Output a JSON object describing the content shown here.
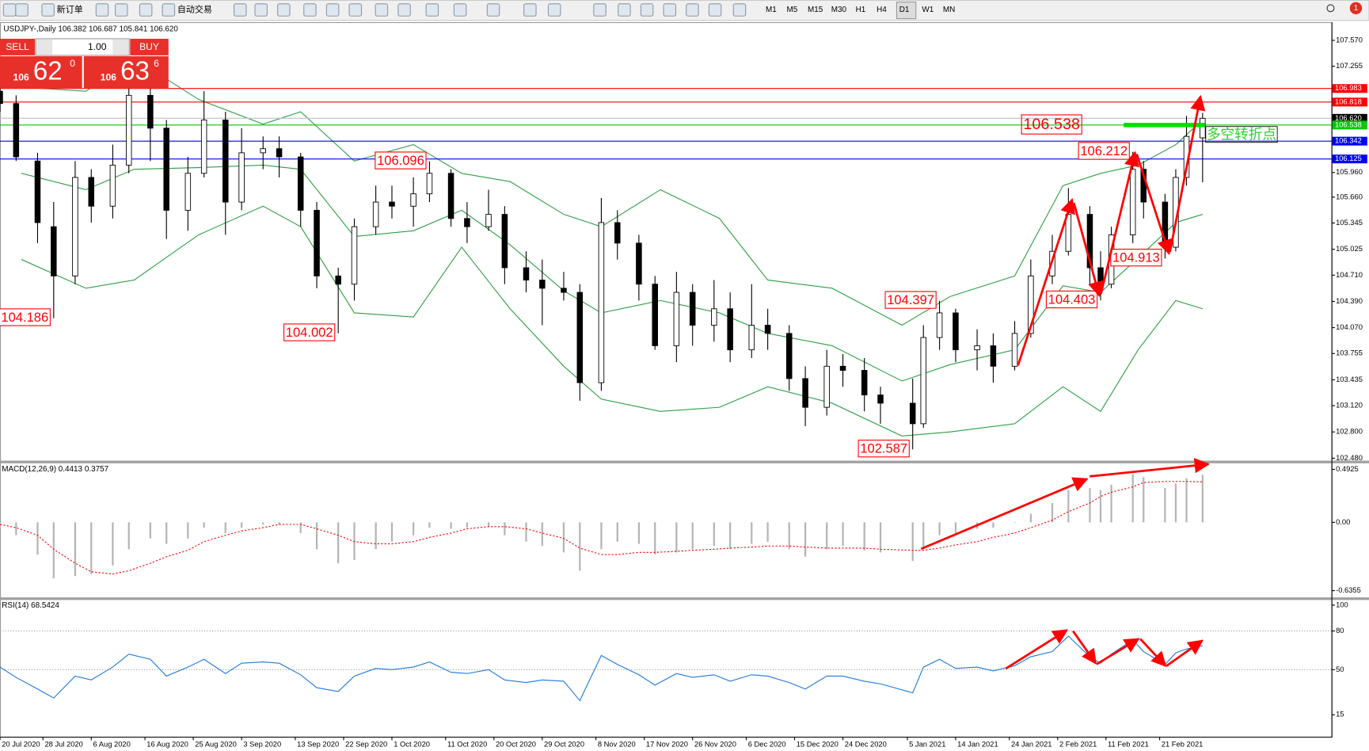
{
  "toolbar": {
    "new_order": "新订单",
    "auto_trading": "自动交易",
    "timeframes": [
      "M1",
      "M5",
      "M15",
      "M30",
      "H1",
      "H4",
      "D1",
      "W1",
      "MN"
    ],
    "notifications": "1"
  },
  "trade_panel": {
    "sell": "SELL",
    "buy": "BUY",
    "lots": "1.00",
    "bid": {
      "big": "106",
      "main": "62",
      "pip": "0"
    },
    "ask": {
      "big": "106",
      "main": "63",
      "pip": "6"
    }
  },
  "chart_data": [
    {
      "type": "candlestick",
      "title": "USDJPY-,Daily  106.382 106.687 105.841 106.620",
      "note": "多空转折点",
      "x": [
        "2020-07-20",
        "2020-07-23",
        "2020-07-27",
        "2020-07-30",
        "2020-08-03",
        "2020-08-06",
        "2020-08-10",
        "2020-08-13",
        "2020-08-17",
        "2020-08-20",
        "2020-08-24",
        "2020-08-27",
        "2020-08-31",
        "2020-09-03",
        "2020-09-07",
        "2020-09-10",
        "2020-09-14",
        "2020-09-17",
        "2020-09-21",
        "2020-09-24",
        "2020-09-28",
        "2020-10-01",
        "2020-10-05",
        "2020-10-08",
        "2020-10-12",
        "2020-10-15",
        "2020-10-19",
        "2020-10-22",
        "2020-10-26",
        "2020-10-29",
        "2020-11-02",
        "2020-11-05",
        "2020-11-09",
        "2020-11-12",
        "2020-11-16",
        "2020-11-19",
        "2020-11-23",
        "2020-11-26",
        "2020-11-30",
        "2020-12-03",
        "2020-12-07",
        "2020-12-10",
        "2020-12-14",
        "2020-12-17",
        "2020-12-21",
        "2020-12-24",
        "2020-12-28",
        "2020-12-31",
        "2021-01-06",
        "2021-01-08",
        "2021-01-11",
        "2021-01-14",
        "2021-01-18",
        "2021-01-21",
        "2021-01-25",
        "2021-01-28",
        "2021-02-01",
        "2021-02-04",
        "2021-02-08",
        "2021-02-10",
        "2021-02-12",
        "2021-02-16",
        "2021-02-18",
        "2021-02-22",
        "2021-02-24",
        "2021-02-26",
        "2021-03-01"
      ],
      "open": [
        106.95,
        106.8,
        106.1,
        105.3,
        104.7,
        105.9,
        105.55,
        106.05,
        106.9,
        106.5,
        105.5,
        105.95,
        106.6,
        105.6,
        106.2,
        106.25,
        106.15,
        105.5,
        104.7,
        104.6,
        105.3,
        105.6,
        105.55,
        105.7,
        105.95,
        105.4,
        105.3,
        105.45,
        104.8,
        104.65,
        104.55,
        104.5,
        103.4,
        105.35,
        105.1,
        104.6,
        103.85,
        104.5,
        104.1,
        104.3,
        103.8,
        104.1,
        104.0,
        103.45,
        103.1,
        103.6,
        103.55,
        103.25,
        103.15,
        102.9,
        103.95,
        104.25,
        103.8,
        103.85,
        103.6,
        104.0,
        104.7,
        105.0,
        105.45,
        104.8,
        104.6,
        105.2,
        106.0,
        105.6,
        105.05,
        105.9,
        106.382
      ],
      "high": [
        107.1,
        106.9,
        106.2,
        105.6,
        106.1,
        106.0,
        106.3,
        107.05,
        107.0,
        106.6,
        106.15,
        106.95,
        106.7,
        106.5,
        106.4,
        106.4,
        106.2,
        105.6,
        104.8,
        105.4,
        105.8,
        105.8,
        105.9,
        106.096,
        106.0,
        105.6,
        105.75,
        105.55,
        105.0,
        104.9,
        104.75,
        104.6,
        105.65,
        105.5,
        105.2,
        104.7,
        104.75,
        104.6,
        104.65,
        104.5,
        104.6,
        104.3,
        104.1,
        103.6,
        103.8,
        103.75,
        103.7,
        103.35,
        103.45,
        104.1,
        104.397,
        104.3,
        104.05,
        104.0,
        104.15,
        104.9,
        105.2,
        105.77,
        105.55,
        105.0,
        105.3,
        106.212,
        106.1,
        105.7,
        106.0,
        106.65,
        106.687
      ],
      "low": [
        106.7,
        106.1,
        105.1,
        104.186,
        104.6,
        105.35,
        105.4,
        105.95,
        106.1,
        105.15,
        105.25,
        105.9,
        105.2,
        105.5,
        106.0,
        105.9,
        105.3,
        104.55,
        104.002,
        104.4,
        105.2,
        105.4,
        105.3,
        105.6,
        105.3,
        105.1,
        105.25,
        104.6,
        104.5,
        104.1,
        104.4,
        103.18,
        103.3,
        104.9,
        104.4,
        103.8,
        103.65,
        103.85,
        103.9,
        103.65,
        103.7,
        103.8,
        103.3,
        102.87,
        103.0,
        103.35,
        103.05,
        102.9,
        102.587,
        102.85,
        103.8,
        103.65,
        103.55,
        103.4,
        103.55,
        103.95,
        104.6,
        104.95,
        104.6,
        104.403,
        104.55,
        105.1,
        105.4,
        104.913,
        105.0,
        105.8,
        105.841
      ],
      "close": [
        106.8,
        106.15,
        105.35,
        104.7,
        105.9,
        105.55,
        106.05,
        106.9,
        106.5,
        105.5,
        105.95,
        106.6,
        105.6,
        106.2,
        106.25,
        106.15,
        105.5,
        104.7,
        104.6,
        105.3,
        105.6,
        105.55,
        105.7,
        105.95,
        105.4,
        105.3,
        105.45,
        104.8,
        104.65,
        104.55,
        104.5,
        103.4,
        105.35,
        105.1,
        104.6,
        103.85,
        104.5,
        104.1,
        104.3,
        103.8,
        104.1,
        104.0,
        103.45,
        103.1,
        103.6,
        103.55,
        103.25,
        103.15,
        102.9,
        103.95,
        104.25,
        103.8,
        103.85,
        103.6,
        104.0,
        104.7,
        105.0,
        105.45,
        104.8,
        104.6,
        105.2,
        106.0,
        105.6,
        105.05,
        105.9,
        106.4,
        106.62
      ],
      "bands": {
        "color": "#2e9e45",
        "x": [
          "2020-07-24",
          "2020-08-05",
          "2020-08-14",
          "2020-08-26",
          "2020-09-07",
          "2020-09-14",
          "2020-09-24",
          "2020-10-05",
          "2020-10-14",
          "2020-10-23",
          "2020-11-02",
          "2020-11-09",
          "2020-11-20",
          "2020-12-01",
          "2020-12-10",
          "2020-12-22",
          "2021-01-04",
          "2021-01-13",
          "2021-01-25",
          "2021-02-03",
          "2021-02-10",
          "2021-02-17",
          "2021-02-24",
          "2021-03-01"
        ],
        "upper": [
          107.0,
          106.95,
          107.35,
          106.85,
          106.55,
          106.7,
          106.1,
          106.3,
          105.95,
          105.85,
          105.45,
          105.3,
          105.75,
          105.4,
          104.65,
          104.55,
          104.1,
          104.45,
          104.7,
          105.8,
          105.95,
          106.05,
          106.3,
          106.6
        ],
        "middle": [
          105.95,
          105.75,
          106.0,
          106.02,
          106.05,
          106.0,
          105.18,
          105.25,
          105.5,
          105.08,
          104.52,
          104.25,
          104.4,
          104.25,
          104.0,
          103.85,
          103.42,
          103.62,
          103.8,
          104.58,
          104.5,
          104.92,
          105.35,
          105.45
        ],
        "lower": [
          104.9,
          104.55,
          104.65,
          105.2,
          105.55,
          105.3,
          104.25,
          104.2,
          105.05,
          104.3,
          103.6,
          103.2,
          103.05,
          103.1,
          103.35,
          103.15,
          102.75,
          102.8,
          102.9,
          103.35,
          103.05,
          103.8,
          104.4,
          104.3
        ]
      },
      "xlim": [
        "2020-07-20",
        "2021-03-25"
      ],
      "xticks": [
        {
          "value": "2020-07-20",
          "label": "20 Jul 2020"
        },
        {
          "value": "2020-07-28",
          "label": "28 Jul 2020"
        },
        {
          "value": "2020-08-06",
          "label": "6 Aug 2020"
        },
        {
          "value": "2020-08-16",
          "label": "16 Aug 2020"
        },
        {
          "value": "2020-08-25",
          "label": "25 Aug 2020"
        },
        {
          "value": "2020-09-03",
          "label": "3 Sep 2020"
        },
        {
          "value": "2020-09-13",
          "label": "13 Sep 2020"
        },
        {
          "value": "2020-09-22",
          "label": "22 Sep 2020"
        },
        {
          "value": "2020-10-01",
          "label": "1 Oct 2020"
        },
        {
          "value": "2020-10-11",
          "label": "11 Oct 2020"
        },
        {
          "value": "2020-10-20",
          "label": "20 Oct 2020"
        },
        {
          "value": "2020-10-29",
          "label": "29 Oct 2020"
        },
        {
          "value": "2020-11-08",
          "label": "8 Nov 2020"
        },
        {
          "value": "2020-11-17",
          "label": "17 Nov 2020"
        },
        {
          "value": "2020-11-26",
          "label": "26 Nov 2020"
        },
        {
          "value": "2020-12-06",
          "label": "6 Dec 2020"
        },
        {
          "value": "2020-12-15",
          "label": "15 Dec 2020"
        },
        {
          "value": "2020-12-24",
          "label": "24 Dec 2020"
        },
        {
          "value": "2021-01-05",
          "label": "5 Jan 2021"
        },
        {
          "value": "2021-01-14",
          "label": "14 Jan 2021"
        },
        {
          "value": "2021-01-24",
          "label": "24 Jan 2021"
        },
        {
          "value": "2021-02-02",
          "label": "2 Feb 2021"
        },
        {
          "value": "2021-02-11",
          "label": "11 Feb 2021"
        },
        {
          "value": "2021-02-21",
          "label": "21 Feb 2021"
        }
      ],
      "ylim": [
        102.45,
        107.77
      ],
      "yticks": [
        {
          "value": 107.57,
          "label": "107.570"
        },
        107.255,
        {
          "value": 105.96,
          "label": "105.960"
        },
        {
          "value": 105.66,
          "label": "105.660"
        },
        105.345,
        105.025,
        {
          "value": 104.71,
          "label": "104.710"
        },
        {
          "value": 104.39,
          "label": "104.390"
        },
        {
          "value": 104.07,
          "label": "104.070"
        },
        103.755,
        103.435,
        {
          "value": 103.12,
          "label": "103.120"
        },
        {
          "value": 102.8,
          "label": "102.800"
        },
        {
          "value": 102.48,
          "label": "102.480"
        }
      ],
      "levels": [
        {
          "value": 106.983,
          "color": "#ff0000"
        },
        {
          "value": 106.818,
          "color": "#ff0000"
        },
        {
          "value": 106.62,
          "label": "106.620",
          "color": "#c0c0c0",
          "label_color": "#000000"
        },
        {
          "value": 106.538,
          "color": "#00c800"
        },
        {
          "value": 106.342,
          "color": "#0000ff"
        },
        {
          "value": 106.125,
          "color": "#0000ff"
        }
      ],
      "annotations": [
        {
          "x": "2020-07-30",
          "value": 104.186
        },
        {
          "x": "2020-09-21",
          "value": 104.002
        },
        {
          "x": "2020-10-08",
          "value": 106.096
        },
        {
          "x": "2021-01-06",
          "value": 102.587
        },
        {
          "x": "2021-01-11",
          "value": 104.397
        },
        {
          "x": "2021-02-10",
          "value": 104.403
        },
        {
          "x": "2021-02-16",
          "value": 106.212
        },
        {
          "x": "2021-02-22",
          "value": 104.913
        }
      ]
    },
    {
      "type": "macd",
      "title": "MACD(12,26,9) 0.4413 0.3757",
      "series": [
        {
          "color": "#b4b4b4",
          "values": [
            -0.05,
            -0.12,
            -0.3,
            -0.52,
            -0.5,
            -0.48,
            -0.4,
            -0.25,
            -0.15,
            -0.2,
            -0.15,
            -0.05,
            -0.1,
            -0.05,
            -0.02,
            -0.02,
            -0.1,
            -0.25,
            -0.38,
            -0.35,
            -0.25,
            -0.18,
            -0.12,
            -0.05,
            -0.06,
            -0.05,
            -0.04,
            -0.12,
            -0.18,
            -0.22,
            -0.28,
            -0.45,
            -0.25,
            -0.18,
            -0.2,
            -0.3,
            -0.28,
            -0.25,
            -0.22,
            -0.25,
            -0.2,
            -0.18,
            -0.25,
            -0.32,
            -0.25,
            -0.22,
            -0.26,
            -0.28,
            -0.36,
            -0.25,
            -0.12,
            -0.1,
            -0.06,
            -0.05,
            0.0,
            0.08,
            0.18,
            0.3,
            0.32,
            0.3,
            0.35,
            0.45,
            0.42,
            0.32,
            0.36,
            0.41,
            0.4413
          ]
        },
        {
          "color": "#ff0000",
          "values": [
            -0.02,
            -0.05,
            -0.12,
            -0.25,
            -0.38,
            -0.46,
            -0.48,
            -0.45,
            -0.38,
            -0.32,
            -0.26,
            -0.18,
            -0.12,
            -0.08,
            -0.05,
            -0.02,
            -0.02,
            -0.06,
            -0.12,
            -0.18,
            -0.2,
            -0.2,
            -0.18,
            -0.14,
            -0.1,
            -0.06,
            -0.04,
            -0.04,
            -0.06,
            -0.1,
            -0.15,
            -0.24,
            -0.3,
            -0.3,
            -0.28,
            -0.28,
            -0.27,
            -0.26,
            -0.25,
            -0.24,
            -0.23,
            -0.22,
            -0.22,
            -0.23,
            -0.24,
            -0.24,
            -0.24,
            -0.25,
            -0.26,
            -0.26,
            -0.24,
            -0.21,
            -0.18,
            -0.14,
            -0.1,
            -0.05,
            0.02,
            0.1,
            0.18,
            0.24,
            0.28,
            0.33,
            0.37,
            0.38,
            0.38,
            0.38,
            0.3757
          ]
        }
      ],
      "ylim": [
        -0.694,
        0.541
      ],
      "yticks": [
        0.4925,
        {
          "value": 0,
          "label": "0.00"
        },
        -0.6355
      ]
    },
    {
      "type": "line",
      "title": "RSI(14) 68.5424",
      "color": "#1e78dc",
      "values": [
        52,
        44,
        35,
        28,
        45,
        42,
        52,
        62,
        58,
        45,
        52,
        58,
        47,
        55,
        56,
        55,
        46,
        36,
        33,
        45,
        51,
        50,
        52,
        56,
        48,
        47,
        50,
        42,
        40,
        42,
        41,
        26,
        61,
        54,
        46,
        38,
        47,
        44,
        46,
        41,
        46,
        45,
        40,
        35,
        45,
        45,
        41,
        39,
        32,
        52,
        58,
        51,
        52,
        49,
        53,
        60,
        64,
        76,
        60,
        55,
        62,
        73,
        64,
        54,
        63,
        66,
        68.5424
      ],
      "levels": [
        80,
        50
      ],
      "ylim": [
        -2,
        103
      ],
      "yticks": [
        100,
        80,
        50,
        15
      ]
    }
  ]
}
